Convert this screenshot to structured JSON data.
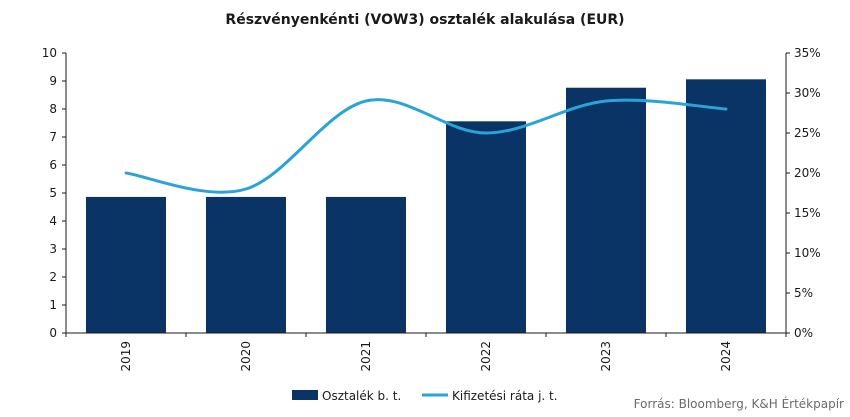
{
  "chart_data": {
    "type": "bar+line",
    "title": "Részvényenkénti  (VOW3) osztalék alakulása (EUR)",
    "categories": [
      "2019",
      "2020",
      "2021",
      "2022",
      "2023",
      "2024"
    ],
    "series": [
      {
        "name": "Osztalék b. t.",
        "type": "bar",
        "axis": "left",
        "values": [
          4.86,
          4.86,
          4.86,
          7.56,
          8.76,
          9.06
        ],
        "color": "#0a3466"
      },
      {
        "name": "Kifizetési ráta j. t.",
        "type": "line",
        "axis": "right",
        "values": [
          20,
          18,
          29,
          25,
          29,
          28
        ],
        "color": "#2aa3d8"
      }
    ],
    "y_left": {
      "ylim": [
        0,
        10
      ],
      "ticks": [
        "0",
        "1",
        "2",
        "3",
        "4",
        "5",
        "6",
        "7",
        "8",
        "9",
        "10"
      ]
    },
    "y_right": {
      "ylim": [
        0,
        35
      ],
      "ticks": [
        "0%",
        "5%",
        "10%",
        "15%",
        "20%",
        "25%",
        "30%",
        "35%"
      ]
    },
    "grid": false,
    "legend": "bottom-center"
  },
  "source": "Forrás: Bloomberg, K&H Értékpapír"
}
